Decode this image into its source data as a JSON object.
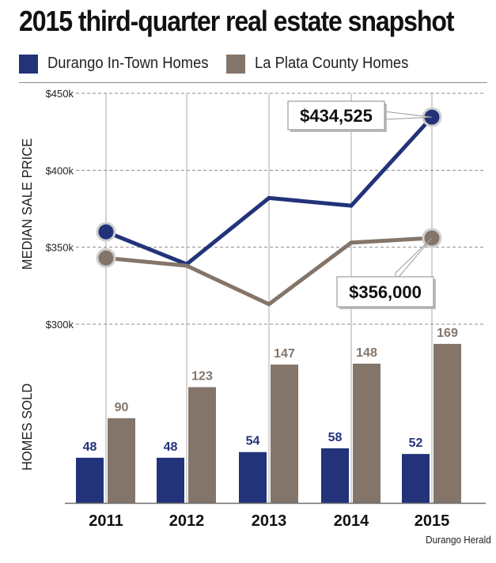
{
  "title": "2015 third-quarter real estate snapshot",
  "credit": "Durango Herald",
  "colors": {
    "durango": "#22337a",
    "laplata": "#84756a",
    "grid": "#a8a8a8"
  },
  "chart_data": [
    {
      "type": "line",
      "ylabel": "MEDIAN SALE PRICE",
      "categories": [
        "2011",
        "2012",
        "2013",
        "2014",
        "2015"
      ],
      "ylim": [
        300000,
        450000
      ],
      "yticks": [
        300000,
        350000,
        400000,
        450000
      ],
      "ytick_labels": [
        "$300k",
        "$350k",
        "$400k",
        "$450k"
      ],
      "grid": true,
      "series": [
        {
          "name": "Durango In-Town Homes",
          "values": [
            360000,
            339000,
            382000,
            377000,
            434525
          ]
        },
        {
          "name": "La Plata County Homes",
          "values": [
            343000,
            338000,
            313000,
            353000,
            356000
          ]
        }
      ],
      "annotations": [
        {
          "series": 0,
          "index": 4,
          "text": "$434,525"
        },
        {
          "series": 1,
          "index": 4,
          "text": "$356,000"
        }
      ]
    },
    {
      "type": "bar",
      "ylabel": "HOMES SOLD",
      "categories": [
        "2011",
        "2012",
        "2013",
        "2014",
        "2015"
      ],
      "series": [
        {
          "name": "Durango In-Town Homes",
          "values": [
            48,
            48,
            54,
            58,
            52
          ]
        },
        {
          "name": "La Plata County Homes",
          "values": [
            90,
            123,
            147,
            148,
            169
          ]
        }
      ]
    }
  ]
}
